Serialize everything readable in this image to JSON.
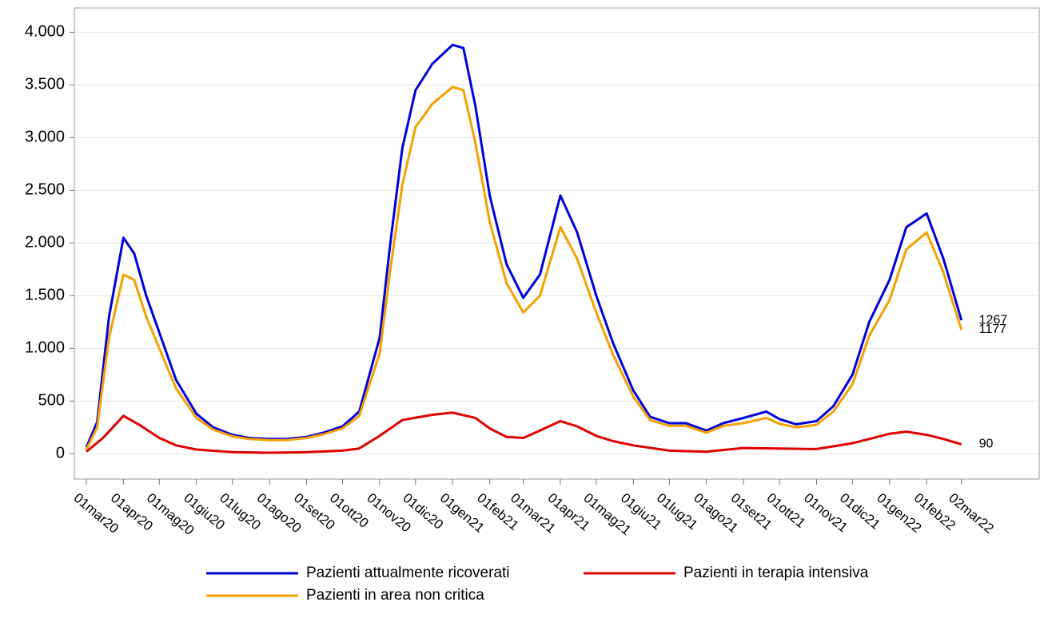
{
  "chart_data": {
    "type": "line",
    "xlim": [
      "2020-02-20",
      "2022-05-06"
    ],
    "xticks": [
      {
        "value": "2020-03-01",
        "label": "01mar20"
      },
      {
        "value": "2020-04-01",
        "label": "01apr20"
      },
      {
        "value": "2020-05-01",
        "label": "01mag20"
      },
      {
        "value": "2020-06-01",
        "label": "01giu20"
      },
      {
        "value": "2020-07-01",
        "label": "01lug20"
      },
      {
        "value": "2020-08-01",
        "label": "01ago20"
      },
      {
        "value": "2020-09-01",
        "label": "01set20"
      },
      {
        "value": "2020-10-01",
        "label": "01ott20"
      },
      {
        "value": "2020-11-01",
        "label": "01nov20"
      },
      {
        "value": "2020-12-01",
        "label": "01dic20"
      },
      {
        "value": "2021-01-01",
        "label": "01gen21"
      },
      {
        "value": "2021-02-01",
        "label": "01feb21"
      },
      {
        "value": "2021-03-01",
        "label": "01mar21"
      },
      {
        "value": "2021-04-01",
        "label": "01apr21"
      },
      {
        "value": "2021-05-01",
        "label": "01mag21"
      },
      {
        "value": "2021-06-01",
        "label": "01giu21"
      },
      {
        "value": "2021-07-01",
        "label": "01lug21"
      },
      {
        "value": "2021-08-01",
        "label": "01ago21"
      },
      {
        "value": "2021-09-01",
        "label": "01set21"
      },
      {
        "value": "2021-10-01",
        "label": "01ott21"
      },
      {
        "value": "2021-11-01",
        "label": "01nov21"
      },
      {
        "value": "2021-12-01",
        "label": "01dic21"
      },
      {
        "value": "2022-01-01",
        "label": "01gen22"
      },
      {
        "value": "2022-02-01",
        "label": "01feb22"
      },
      {
        "value": "2022-03-02",
        "label": "02mar22"
      }
    ],
    "ylim": [
      -240,
      4230
    ],
    "yticks": [
      0,
      500,
      {
        "value": 1000,
        "label": "1.000"
      },
      {
        "value": 1500,
        "label": "1.500"
      },
      {
        "value": 2000,
        "label": "2.000"
      },
      {
        "value": 2500,
        "label": "2.500"
      },
      {
        "value": 3000,
        "label": "3.000"
      },
      {
        "value": 3500,
        "label": "3.500"
      },
      {
        "value": 4000,
        "label": "4.000"
      }
    ],
    "grid": true,
    "legend": "bottom",
    "series": [
      {
        "name": "Pazienti attualmente ricoverati",
        "color": "#0000dd",
        "x": [
          "2020-03-01",
          "2020-03-10",
          "2020-03-20",
          "2020-04-01",
          "2020-04-10",
          "2020-04-20",
          "2020-05-01",
          "2020-05-15",
          "2020-06-01",
          "2020-06-15",
          "2020-07-01",
          "2020-07-15",
          "2020-08-01",
          "2020-08-15",
          "2020-09-01",
          "2020-09-15",
          "2020-10-01",
          "2020-10-15",
          "2020-11-01",
          "2020-11-10",
          "2020-11-20",
          "2020-12-01",
          "2020-12-15",
          "2021-01-01",
          "2021-01-10",
          "2021-01-20",
          "2021-02-01",
          "2021-02-15",
          "2021-03-01",
          "2021-03-15",
          "2021-04-01",
          "2021-04-15",
          "2021-05-01",
          "2021-05-15",
          "2021-06-01",
          "2021-06-15",
          "2021-07-01",
          "2021-07-15",
          "2021-08-01",
          "2021-08-15",
          "2021-09-01",
          "2021-09-20",
          "2021-10-01",
          "2021-10-15",
          "2021-11-01",
          "2021-11-15",
          "2021-12-01",
          "2021-12-15",
          "2022-01-01",
          "2022-01-15",
          "2022-02-01",
          "2022-02-15",
          "2022-03-02"
        ],
        "values": [
          60,
          300,
          1300,
          2050,
          1900,
          1500,
          1150,
          700,
          380,
          250,
          180,
          150,
          140,
          140,
          160,
          200,
          260,
          400,
          1100,
          2000,
          2900,
          3450,
          3700,
          3880,
          3850,
          3300,
          2450,
          1800,
          1480,
          1700,
          2450,
          2100,
          1500,
          1050,
          600,
          350,
          290,
          290,
          220,
          290,
          340,
          400,
          330,
          280,
          310,
          450,
          750,
          1250,
          1650,
          2150,
          2280,
          1850,
          1267
        ]
      },
      {
        "name": "Pazienti in terapia intensiva",
        "color": "#e00000",
        "x": [
          "2020-03-01",
          "2020-03-15",
          "2020-04-01",
          "2020-04-15",
          "2020-05-01",
          "2020-05-15",
          "2020-06-01",
          "2020-07-01",
          "2020-08-01",
          "2020-09-01",
          "2020-10-01",
          "2020-10-15",
          "2020-11-01",
          "2020-11-20",
          "2020-12-15",
          "2021-01-01",
          "2021-01-20",
          "2021-02-01",
          "2021-02-15",
          "2021-03-01",
          "2021-03-15",
          "2021-04-01",
          "2021-04-15",
          "2021-05-01",
          "2021-05-15",
          "2021-06-01",
          "2021-07-01",
          "2021-08-01",
          "2021-09-01",
          "2021-10-01",
          "2021-11-01",
          "2021-12-01",
          "2021-12-15",
          "2022-01-01",
          "2022-01-15",
          "2022-02-01",
          "2022-02-15",
          "2022-03-02"
        ],
        "values": [
          20,
          150,
          360,
          270,
          150,
          80,
          40,
          15,
          10,
          15,
          30,
          50,
          170,
          320,
          370,
          390,
          340,
          240,
          160,
          150,
          220,
          310,
          260,
          170,
          120,
          80,
          30,
          20,
          55,
          50,
          45,
          100,
          140,
          190,
          210,
          180,
          140,
          90
        ]
      },
      {
        "name": "Pazienti in area non critica",
        "color": "#f5a000",
        "x": [
          "2020-03-01",
          "2020-03-10",
          "2020-03-20",
          "2020-04-01",
          "2020-04-10",
          "2020-04-20",
          "2020-05-01",
          "2020-05-15",
          "2020-06-01",
          "2020-06-15",
          "2020-07-01",
          "2020-07-15",
          "2020-08-01",
          "2020-08-15",
          "2020-09-01",
          "2020-09-15",
          "2020-10-01",
          "2020-10-15",
          "2020-11-01",
          "2020-11-10",
          "2020-11-20",
          "2020-12-01",
          "2020-12-15",
          "2021-01-01",
          "2021-01-10",
          "2021-01-20",
          "2021-02-01",
          "2021-02-15",
          "2021-03-01",
          "2021-03-15",
          "2021-04-01",
          "2021-04-15",
          "2021-05-01",
          "2021-05-15",
          "2021-06-01",
          "2021-06-15",
          "2021-07-01",
          "2021-07-15",
          "2021-08-01",
          "2021-08-15",
          "2021-09-01",
          "2021-09-20",
          "2021-10-01",
          "2021-10-15",
          "2021-11-01",
          "2021-11-15",
          "2021-12-01",
          "2021-12-15",
          "2022-01-01",
          "2022-01-15",
          "2022-02-01",
          "2022-02-15",
          "2022-03-02"
        ],
        "values": [
          40,
          250,
          1100,
          1700,
          1650,
          1300,
          1000,
          620,
          340,
          230,
          165,
          140,
          130,
          130,
          150,
          185,
          240,
          360,
          950,
          1750,
          2550,
          3100,
          3320,
          3480,
          3450,
          2950,
          2200,
          1620,
          1340,
          1500,
          2150,
          1850,
          1340,
          940,
          540,
          320,
          265,
          265,
          200,
          265,
          290,
          340,
          285,
          250,
          275,
          400,
          660,
          1120,
          1460,
          1940,
          2100,
          1720,
          1177
        ]
      }
    ]
  }
}
